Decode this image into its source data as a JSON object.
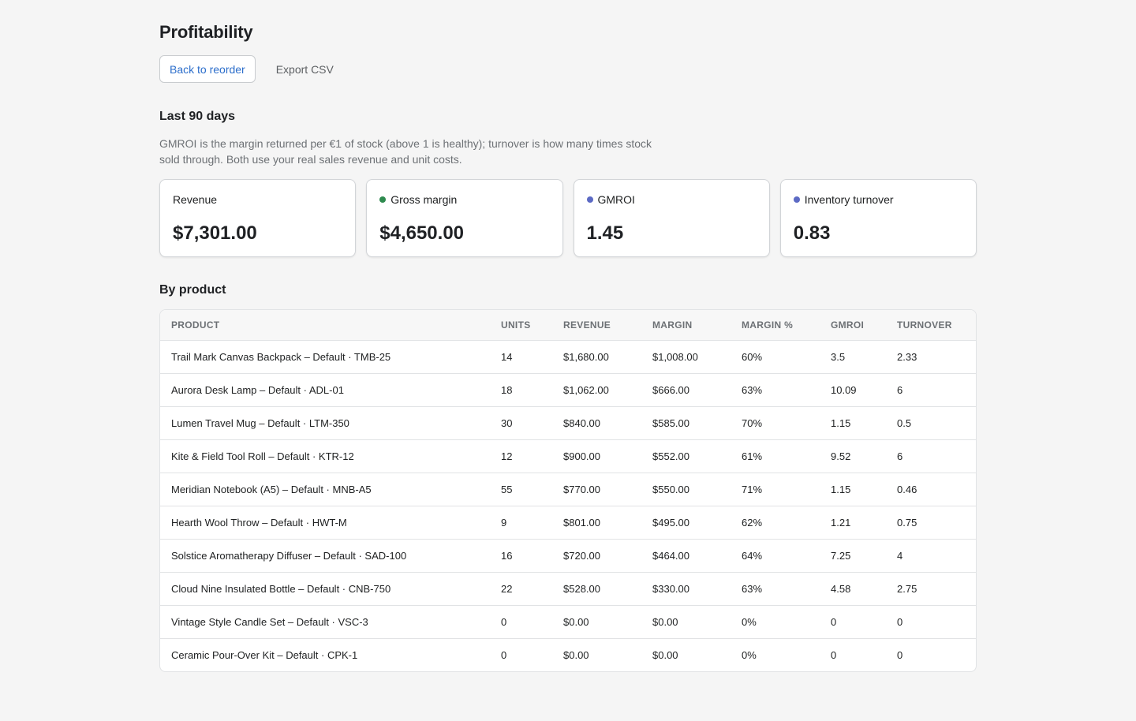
{
  "page": {
    "title": "Profitability",
    "back_label": "Back to reorder",
    "export_label": "Export CSV"
  },
  "period": {
    "heading": "Last 90 days",
    "helptext": "GMROI is the margin returned per €1 of stock (above 1 is healthy); turnover is how many times stock sold through. Both use your real sales revenue and unit costs."
  },
  "cards": [
    {
      "label": "Revenue",
      "value": "$7,301.00",
      "dot": null
    },
    {
      "label": "Gross margin",
      "value": "$4,650.00",
      "dot": "#2e8a4e"
    },
    {
      "label": "GMROI",
      "value": "1.45",
      "dot": "#5c6ac4"
    },
    {
      "label": "Inventory turnover",
      "value": "0.83",
      "dot": "#5c6ac4"
    }
  ],
  "by_product": {
    "heading": "By product",
    "columns": [
      "PRODUCT",
      "UNITS",
      "REVENUE",
      "MARGIN",
      "MARGIN %",
      "GMROI",
      "TURNOVER"
    ],
    "rows": [
      [
        "Trail Mark Canvas Backpack – Default · TMB-25",
        "14",
        "$1,680.00",
        "$1,008.00",
        "60%",
        "3.5",
        "2.33"
      ],
      [
        "Aurora Desk Lamp – Default · ADL-01",
        "18",
        "$1,062.00",
        "$666.00",
        "63%",
        "10.09",
        "6"
      ],
      [
        "Lumen Travel Mug – Default · LTM-350",
        "30",
        "$840.00",
        "$585.00",
        "70%",
        "1.15",
        "0.5"
      ],
      [
        "Kite & Field Tool Roll – Default · KTR-12",
        "12",
        "$900.00",
        "$552.00",
        "61%",
        "9.52",
        "6"
      ],
      [
        "Meridian Notebook (A5) – Default · MNB-A5",
        "55",
        "$770.00",
        "$550.00",
        "71%",
        "1.15",
        "0.46"
      ],
      [
        "Hearth Wool Throw – Default · HWT-M",
        "9",
        "$801.00",
        "$495.00",
        "62%",
        "1.21",
        "0.75"
      ],
      [
        "Solstice Aromatherapy Diffuser – Default · SAD-100",
        "16",
        "$720.00",
        "$464.00",
        "64%",
        "7.25",
        "4"
      ],
      [
        "Cloud Nine Insulated Bottle – Default · CNB-750",
        "22",
        "$528.00",
        "$330.00",
        "63%",
        "4.58",
        "2.75"
      ],
      [
        "Vintage Style Candle Set – Default · VSC-3",
        "0",
        "$0.00",
        "$0.00",
        "0%",
        "0",
        "0"
      ],
      [
        "Ceramic Pour-Over Kit – Default · CPK-1",
        "0",
        "$0.00",
        "$0.00",
        "0%",
        "0",
        "0"
      ]
    ]
  }
}
